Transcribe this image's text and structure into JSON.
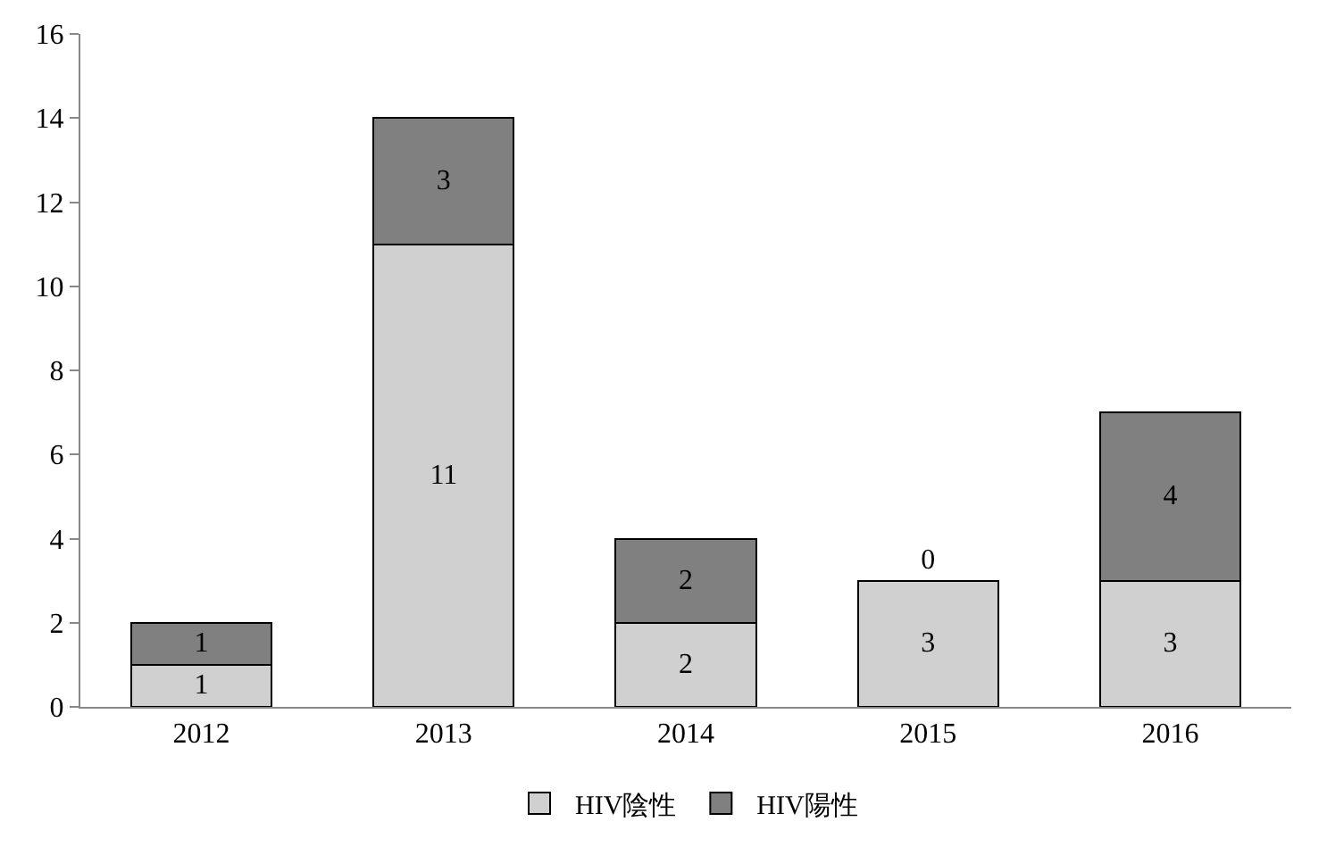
{
  "chart_data": {
    "type": "bar",
    "stacked": true,
    "categories": [
      "2012",
      "2013",
      "2014",
      "2015",
      "2016"
    ],
    "series": [
      {
        "name": "HIV陰性",
        "color": "#d0d0d0",
        "values": [
          1,
          11,
          2,
          3,
          3
        ]
      },
      {
        "name": "HIV陽性",
        "color": "#808080",
        "values": [
          1,
          3,
          2,
          0,
          4
        ]
      }
    ],
    "ylim": [
      0,
      16
    ],
    "yticks": [
      0,
      2,
      4,
      6,
      8,
      10,
      12,
      14,
      16
    ],
    "data_labels": true,
    "legend": "bottom"
  }
}
